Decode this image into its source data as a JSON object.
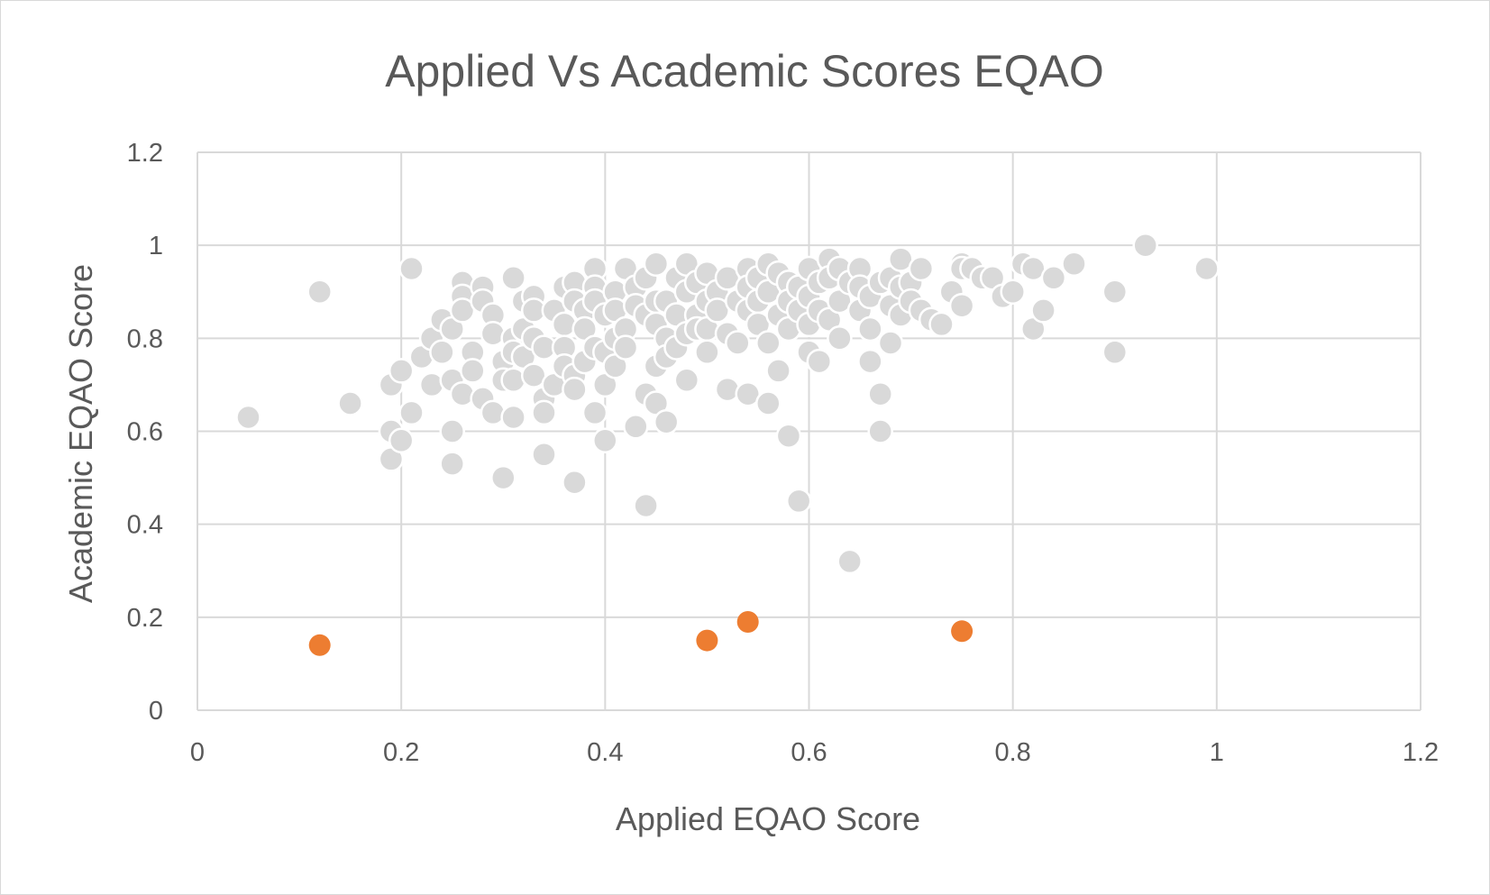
{
  "chart_data": {
    "type": "scatter",
    "title": "Applied Vs Academic Scores EQAO",
    "xlabel": "Applied EQAO Score",
    "ylabel": "Academic EQAO Score",
    "xlim": [
      0,
      1.2
    ],
    "ylim": [
      0,
      1.2
    ],
    "x_ticks": [
      "0",
      "0.2",
      "0.4",
      "0.6",
      "0.8",
      "1",
      "1.2"
    ],
    "y_ticks": [
      "0",
      "0.2",
      "0.4",
      "0.6",
      "0.8",
      "1",
      "1.2"
    ],
    "grid": true,
    "legend": "none",
    "series": [
      {
        "color": "#d9d9d9",
        "points": [
          [
            0.05,
            0.63
          ],
          [
            0.12,
            0.9
          ],
          [
            0.15,
            0.66
          ],
          [
            0.19,
            0.7
          ],
          [
            0.19,
            0.6
          ],
          [
            0.19,
            0.54
          ],
          [
            0.2,
            0.73
          ],
          [
            0.2,
            0.58
          ],
          [
            0.21,
            0.95
          ],
          [
            0.21,
            0.64
          ],
          [
            0.22,
            0.76
          ],
          [
            0.23,
            0.8
          ],
          [
            0.23,
            0.7
          ],
          [
            0.24,
            0.84
          ],
          [
            0.24,
            0.77
          ],
          [
            0.25,
            0.82
          ],
          [
            0.25,
            0.71
          ],
          [
            0.25,
            0.6
          ],
          [
            0.25,
            0.53
          ],
          [
            0.26,
            0.92
          ],
          [
            0.26,
            0.89
          ],
          [
            0.26,
            0.86
          ],
          [
            0.26,
            0.68
          ],
          [
            0.27,
            0.77
          ],
          [
            0.27,
            0.73
          ],
          [
            0.28,
            0.91
          ],
          [
            0.28,
            0.88
          ],
          [
            0.28,
            0.67
          ],
          [
            0.29,
            0.85
          ],
          [
            0.29,
            0.81
          ],
          [
            0.29,
            0.64
          ],
          [
            0.3,
            0.75
          ],
          [
            0.3,
            0.71
          ],
          [
            0.3,
            0.5
          ],
          [
            0.31,
            0.93
          ],
          [
            0.31,
            0.8
          ],
          [
            0.31,
            0.77
          ],
          [
            0.31,
            0.71
          ],
          [
            0.31,
            0.63
          ],
          [
            0.32,
            0.88
          ],
          [
            0.32,
            0.82
          ],
          [
            0.32,
            0.76
          ],
          [
            0.33,
            0.89
          ],
          [
            0.33,
            0.86
          ],
          [
            0.33,
            0.8
          ],
          [
            0.33,
            0.72
          ],
          [
            0.34,
            0.78
          ],
          [
            0.34,
            0.67
          ],
          [
            0.34,
            0.64
          ],
          [
            0.34,
            0.55
          ],
          [
            0.35,
            0.86
          ],
          [
            0.35,
            0.7
          ],
          [
            0.36,
            0.91
          ],
          [
            0.36,
            0.83
          ],
          [
            0.36,
            0.78
          ],
          [
            0.36,
            0.74
          ],
          [
            0.37,
            0.92
          ],
          [
            0.37,
            0.88
          ],
          [
            0.37,
            0.72
          ],
          [
            0.37,
            0.69
          ],
          [
            0.37,
            0.49
          ],
          [
            0.38,
            0.86
          ],
          [
            0.38,
            0.82
          ],
          [
            0.38,
            0.75
          ],
          [
            0.39,
            0.95
          ],
          [
            0.39,
            0.91
          ],
          [
            0.39,
            0.88
          ],
          [
            0.39,
            0.78
          ],
          [
            0.39,
            0.64
          ],
          [
            0.4,
            0.85
          ],
          [
            0.4,
            0.77
          ],
          [
            0.4,
            0.7
          ],
          [
            0.4,
            0.58
          ],
          [
            0.41,
            0.9
          ],
          [
            0.41,
            0.86
          ],
          [
            0.41,
            0.8
          ],
          [
            0.41,
            0.74
          ],
          [
            0.42,
            0.95
          ],
          [
            0.42,
            0.82
          ],
          [
            0.42,
            0.78
          ],
          [
            0.43,
            0.91
          ],
          [
            0.43,
            0.87
          ],
          [
            0.43,
            0.61
          ],
          [
            0.44,
            0.93
          ],
          [
            0.44,
            0.85
          ],
          [
            0.44,
            0.68
          ],
          [
            0.44,
            0.44
          ],
          [
            0.45,
            0.96
          ],
          [
            0.45,
            0.88
          ],
          [
            0.45,
            0.83
          ],
          [
            0.45,
            0.74
          ],
          [
            0.45,
            0.66
          ],
          [
            0.46,
            0.88
          ],
          [
            0.46,
            0.8
          ],
          [
            0.46,
            0.76
          ],
          [
            0.46,
            0.62
          ],
          [
            0.47,
            0.93
          ],
          [
            0.47,
            0.85
          ],
          [
            0.47,
            0.78
          ],
          [
            0.48,
            0.96
          ],
          [
            0.48,
            0.9
          ],
          [
            0.48,
            0.81
          ],
          [
            0.48,
            0.71
          ],
          [
            0.49,
            0.92
          ],
          [
            0.49,
            0.85
          ],
          [
            0.49,
            0.82
          ],
          [
            0.5,
            0.94
          ],
          [
            0.5,
            0.88
          ],
          [
            0.5,
            0.82
          ],
          [
            0.5,
            0.77
          ],
          [
            0.51,
            0.9
          ],
          [
            0.51,
            0.86
          ],
          [
            0.52,
            0.93
          ],
          [
            0.52,
            0.81
          ],
          [
            0.52,
            0.69
          ],
          [
            0.53,
            0.88
          ],
          [
            0.53,
            0.79
          ],
          [
            0.54,
            0.95
          ],
          [
            0.54,
            0.91
          ],
          [
            0.54,
            0.86
          ],
          [
            0.54,
            0.68
          ],
          [
            0.55,
            0.93
          ],
          [
            0.55,
            0.88
          ],
          [
            0.55,
            0.83
          ],
          [
            0.56,
            0.96
          ],
          [
            0.56,
            0.9
          ],
          [
            0.56,
            0.79
          ],
          [
            0.56,
            0.66
          ],
          [
            0.57,
            0.94
          ],
          [
            0.57,
            0.85
          ],
          [
            0.57,
            0.73
          ],
          [
            0.58,
            0.92
          ],
          [
            0.58,
            0.88
          ],
          [
            0.58,
            0.82
          ],
          [
            0.58,
            0.59
          ],
          [
            0.59,
            0.91
          ],
          [
            0.59,
            0.86
          ],
          [
            0.59,
            0.45
          ],
          [
            0.6,
            0.95
          ],
          [
            0.6,
            0.89
          ],
          [
            0.6,
            0.83
          ],
          [
            0.6,
            0.77
          ],
          [
            0.61,
            0.92
          ],
          [
            0.61,
            0.86
          ],
          [
            0.61,
            0.75
          ],
          [
            0.62,
            0.97
          ],
          [
            0.62,
            0.93
          ],
          [
            0.62,
            0.84
          ],
          [
            0.63,
            0.95
          ],
          [
            0.63,
            0.88
          ],
          [
            0.63,
            0.8
          ],
          [
            0.64,
            0.92
          ],
          [
            0.64,
            0.32
          ],
          [
            0.65,
            0.95
          ],
          [
            0.65,
            0.91
          ],
          [
            0.65,
            0.86
          ],
          [
            0.66,
            0.89
          ],
          [
            0.66,
            0.82
          ],
          [
            0.66,
            0.75
          ],
          [
            0.67,
            0.92
          ],
          [
            0.67,
            0.68
          ],
          [
            0.67,
            0.6
          ],
          [
            0.68,
            0.93
          ],
          [
            0.68,
            0.87
          ],
          [
            0.68,
            0.79
          ],
          [
            0.69,
            0.97
          ],
          [
            0.69,
            0.91
          ],
          [
            0.69,
            0.85
          ],
          [
            0.7,
            0.92
          ],
          [
            0.7,
            0.88
          ],
          [
            0.71,
            0.95
          ],
          [
            0.71,
            0.86
          ],
          [
            0.72,
            0.84
          ],
          [
            0.73,
            0.83
          ],
          [
            0.74,
            0.9
          ],
          [
            0.75,
            0.96
          ],
          [
            0.75,
            0.95
          ],
          [
            0.75,
            0.87
          ],
          [
            0.76,
            0.95
          ],
          [
            0.77,
            0.93
          ],
          [
            0.78,
            0.93
          ],
          [
            0.79,
            0.89
          ],
          [
            0.8,
            0.9
          ],
          [
            0.81,
            0.96
          ],
          [
            0.82,
            0.95
          ],
          [
            0.82,
            0.82
          ],
          [
            0.83,
            0.86
          ],
          [
            0.84,
            0.93
          ],
          [
            0.86,
            0.96
          ],
          [
            0.9,
            0.9
          ],
          [
            0.9,
            0.77
          ],
          [
            0.93,
            1.0
          ],
          [
            0.99,
            0.95
          ]
        ]
      },
      {
        "color": "#ed7d31",
        "points": [
          [
            0.12,
            0.14
          ],
          [
            0.5,
            0.15
          ],
          [
            0.54,
            0.19
          ],
          [
            0.75,
            0.17
          ]
        ]
      }
    ]
  }
}
